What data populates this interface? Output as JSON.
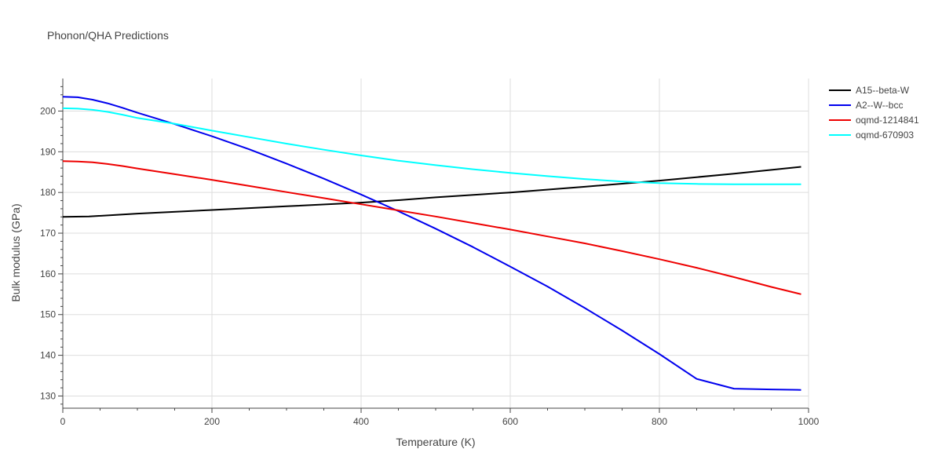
{
  "chart_data": {
    "type": "line",
    "title": "Phonon/QHA Predictions",
    "xlabel": "Temperature (K)",
    "ylabel": "Bulk modulus (GPa)",
    "xlim": [
      0,
      1000
    ],
    "ylim": [
      127,
      208
    ],
    "xticks": [
      0,
      200,
      400,
      600,
      800,
      1000
    ],
    "yticks": [
      130,
      140,
      150,
      160,
      170,
      180,
      190,
      200
    ],
    "grid": true,
    "legend_position": "top-right",
    "series": [
      {
        "name": "A15--beta-W",
        "color": "#000000",
        "x": [
          0,
          35,
          100,
          200,
          300,
          400,
          450,
          500,
          600,
          700,
          800,
          900,
          990
        ],
        "y": [
          174.0,
          174.1,
          174.8,
          175.7,
          176.6,
          177.5,
          178.1,
          178.8,
          180.0,
          181.4,
          182.9,
          184.6,
          186.3
        ]
      },
      {
        "name": "A2--W--bcc",
        "color": "#0000ee",
        "x": [
          0,
          20,
          40,
          60,
          80,
          100,
          150,
          200,
          250,
          300,
          350,
          400,
          450,
          500,
          550,
          600,
          650,
          700,
          750,
          800,
          850,
          900,
          950,
          990
        ],
        "y": [
          203.5,
          203.4,
          202.8,
          201.9,
          200.8,
          199.6,
          196.8,
          193.8,
          190.6,
          187.1,
          183.4,
          179.5,
          175.4,
          171.1,
          166.6,
          161.8,
          156.9,
          151.6,
          146.1,
          140.3,
          134.2,
          131.8,
          131.6,
          131.5
        ]
      },
      {
        "name": "oqmd-1214841",
        "color": "#ee0000",
        "x": [
          0,
          20,
          40,
          60,
          80,
          100,
          150,
          200,
          250,
          300,
          350,
          400,
          450,
          500,
          550,
          600,
          650,
          700,
          750,
          800,
          850,
          900,
          950,
          990
        ],
        "y": [
          187.7,
          187.6,
          187.4,
          187.0,
          186.5,
          185.9,
          184.5,
          183.1,
          181.6,
          180.1,
          178.6,
          177.1,
          175.6,
          174.1,
          172.5,
          170.9,
          169.2,
          167.5,
          165.6,
          163.6,
          161.5,
          159.2,
          156.8,
          155.0
        ]
      },
      {
        "name": "oqmd-670903",
        "color": "#00ffff",
        "x": [
          0,
          20,
          40,
          60,
          80,
          100,
          150,
          200,
          250,
          300,
          350,
          400,
          450,
          500,
          550,
          600,
          650,
          700,
          750,
          800,
          850,
          900,
          950,
          990
        ],
        "y": [
          200.7,
          200.6,
          200.3,
          199.8,
          199.1,
          198.3,
          196.9,
          195.2,
          193.6,
          192.0,
          190.5,
          189.1,
          187.8,
          186.7,
          185.7,
          184.8,
          184.0,
          183.3,
          182.7,
          182.3,
          182.1,
          182.0,
          182.0,
          182.0
        ]
      }
    ]
  }
}
